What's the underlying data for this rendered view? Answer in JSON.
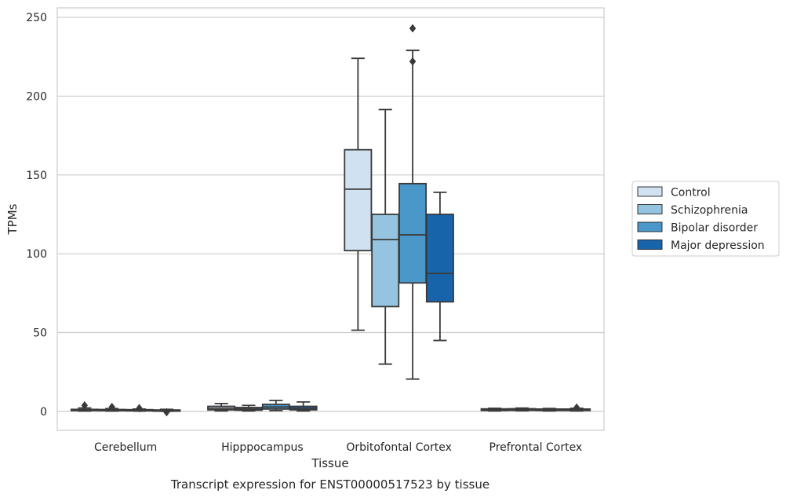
{
  "chart_data": {
    "type": "box",
    "title": "",
    "caption": "Transcript expression for ENST00000517523 by tissue",
    "xlabel": "Tissue",
    "ylabel": "TPMs",
    "ylim": [
      -12,
      256
    ],
    "yticks": [
      0,
      50,
      100,
      150,
      200,
      250
    ],
    "grid": "horizontal",
    "legend_position": "right",
    "categories": [
      "Cerebellum",
      "Hipppocampus",
      "Orbitofontal Cortex",
      "Prefrontal Cortex"
    ],
    "series": [
      {
        "name": "Control",
        "color": "#d0e1f2",
        "boxes": [
          {
            "whislo": 0.2,
            "q1": 0.5,
            "med": 0.9,
            "q3": 1.3,
            "whishi": 2.2,
            "fliers": [
              3.8
            ]
          },
          {
            "whislo": 0.3,
            "q1": 1.0,
            "med": 2.0,
            "q3": 3.2,
            "whishi": 5.0,
            "fliers": []
          },
          {
            "whislo": 51.5,
            "q1": 102,
            "med": 141,
            "q3": 166,
            "whishi": 224,
            "fliers": []
          },
          {
            "whislo": 0.3,
            "q1": 0.6,
            "med": 1.0,
            "q3": 1.6,
            "whishi": 2.0,
            "fliers": []
          }
        ]
      },
      {
        "name": "Schizophrenia",
        "color": "#94c4df",
        "boxes": [
          {
            "whislo": 0.2,
            "q1": 0.5,
            "med": 0.9,
            "q3": 1.2,
            "whishi": 1.8,
            "fliers": [
              2.8
            ]
          },
          {
            "whislo": 0.3,
            "q1": 0.8,
            "med": 1.5,
            "q3": 2.5,
            "whishi": 3.8,
            "fliers": []
          },
          {
            "whislo": 30,
            "q1": 66.5,
            "med": 109,
            "q3": 125,
            "whishi": 191.5,
            "fliers": []
          },
          {
            "whislo": 0.4,
            "q1": 0.7,
            "med": 1.1,
            "q3": 1.7,
            "whishi": 2.1,
            "fliers": []
          }
        ]
      },
      {
        "name": "Bipolar disorder",
        "color": "#4a98c9",
        "boxes": [
          {
            "whislo": 0.2,
            "q1": 0.4,
            "med": 0.8,
            "q3": 1.1,
            "whishi": 1.5,
            "fliers": [
              2.0
            ]
          },
          {
            "whislo": 0.5,
            "q1": 1.5,
            "med": 2.8,
            "q3": 4.5,
            "whishi": 7.0,
            "fliers": []
          },
          {
            "whislo": 20.5,
            "q1": 81.5,
            "med": 112,
            "q3": 144.5,
            "whishi": 229,
            "fliers": [
              243,
              222
            ]
          },
          {
            "whislo": 0.3,
            "q1": 0.6,
            "med": 1.0,
            "q3": 1.5,
            "whishi": 1.9,
            "fliers": []
          }
        ]
      },
      {
        "name": "Major depression",
        "color": "#1764ab",
        "boxes": [
          {
            "whislo": 0.1,
            "q1": 0.3,
            "med": 0.6,
            "q3": 0.9,
            "whishi": 1.3,
            "fliers": [
              -0.5
            ]
          },
          {
            "whislo": 0.3,
            "q1": 1.0,
            "med": 2.0,
            "q3": 3.2,
            "whishi": 6.0,
            "fliers": []
          },
          {
            "whislo": 45,
            "q1": 69.5,
            "med": 87.5,
            "q3": 125,
            "whishi": 139,
            "fliers": []
          },
          {
            "whislo": 0.3,
            "q1": 0.6,
            "med": 1.0,
            "q3": 1.5,
            "whishi": 2.0,
            "fliers": [
              2.4
            ]
          }
        ]
      }
    ]
  }
}
